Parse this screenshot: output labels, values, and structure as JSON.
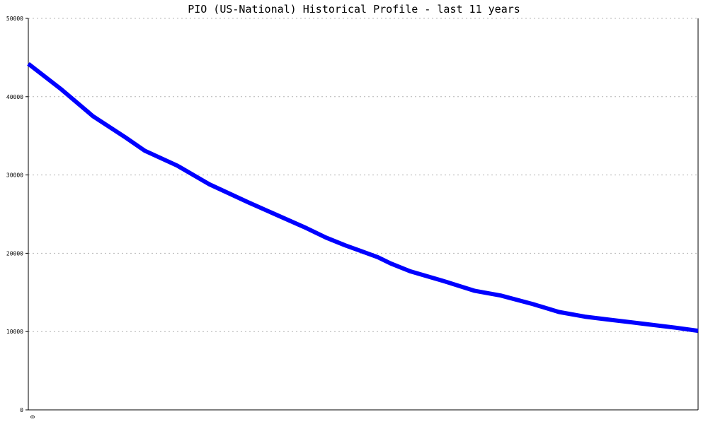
{
  "chart_data": {
    "type": "line",
    "title": "PIO (US-National) Historical Profile - last 11 years",
    "xlabel": "",
    "ylabel": "",
    "ylim": [
      0,
      50000
    ],
    "yticks": [
      "0",
      "10000",
      "20000",
      "30000",
      "40000",
      "50000"
    ],
    "xticks": [
      "0"
    ],
    "grid": true,
    "series": [
      {
        "color": "#0000ff",
        "points": [
          {
            "x": 0.0,
            "y": 44200
          },
          {
            "x": 0.5,
            "y": 41000
          },
          {
            "x": 1.0,
            "y": 37500
          },
          {
            "x": 1.5,
            "y": 34800
          },
          {
            "x": 1.8,
            "y": 33100
          },
          {
            "x": 2.3,
            "y": 31200
          },
          {
            "x": 2.8,
            "y": 28800
          },
          {
            "x": 3.4,
            "y": 26500
          },
          {
            "x": 4.3,
            "y": 23200
          },
          {
            "x": 4.6,
            "y": 22000
          },
          {
            "x": 4.9,
            "y": 21000
          },
          {
            "x": 5.4,
            "y": 19500
          },
          {
            "x": 5.6,
            "y": 18700
          },
          {
            "x": 5.9,
            "y": 17700
          },
          {
            "x": 6.4,
            "y": 16500
          },
          {
            "x": 6.9,
            "y": 15200
          },
          {
            "x": 7.3,
            "y": 14600
          },
          {
            "x": 7.8,
            "y": 13500
          },
          {
            "x": 8.2,
            "y": 12500
          },
          {
            "x": 8.6,
            "y": 11900
          },
          {
            "x": 9.0,
            "y": 11500
          },
          {
            "x": 9.5,
            "y": 11000
          },
          {
            "x": 10.0,
            "y": 10500
          },
          {
            "x": 10.35,
            "y": 10100
          }
        ]
      }
    ]
  }
}
